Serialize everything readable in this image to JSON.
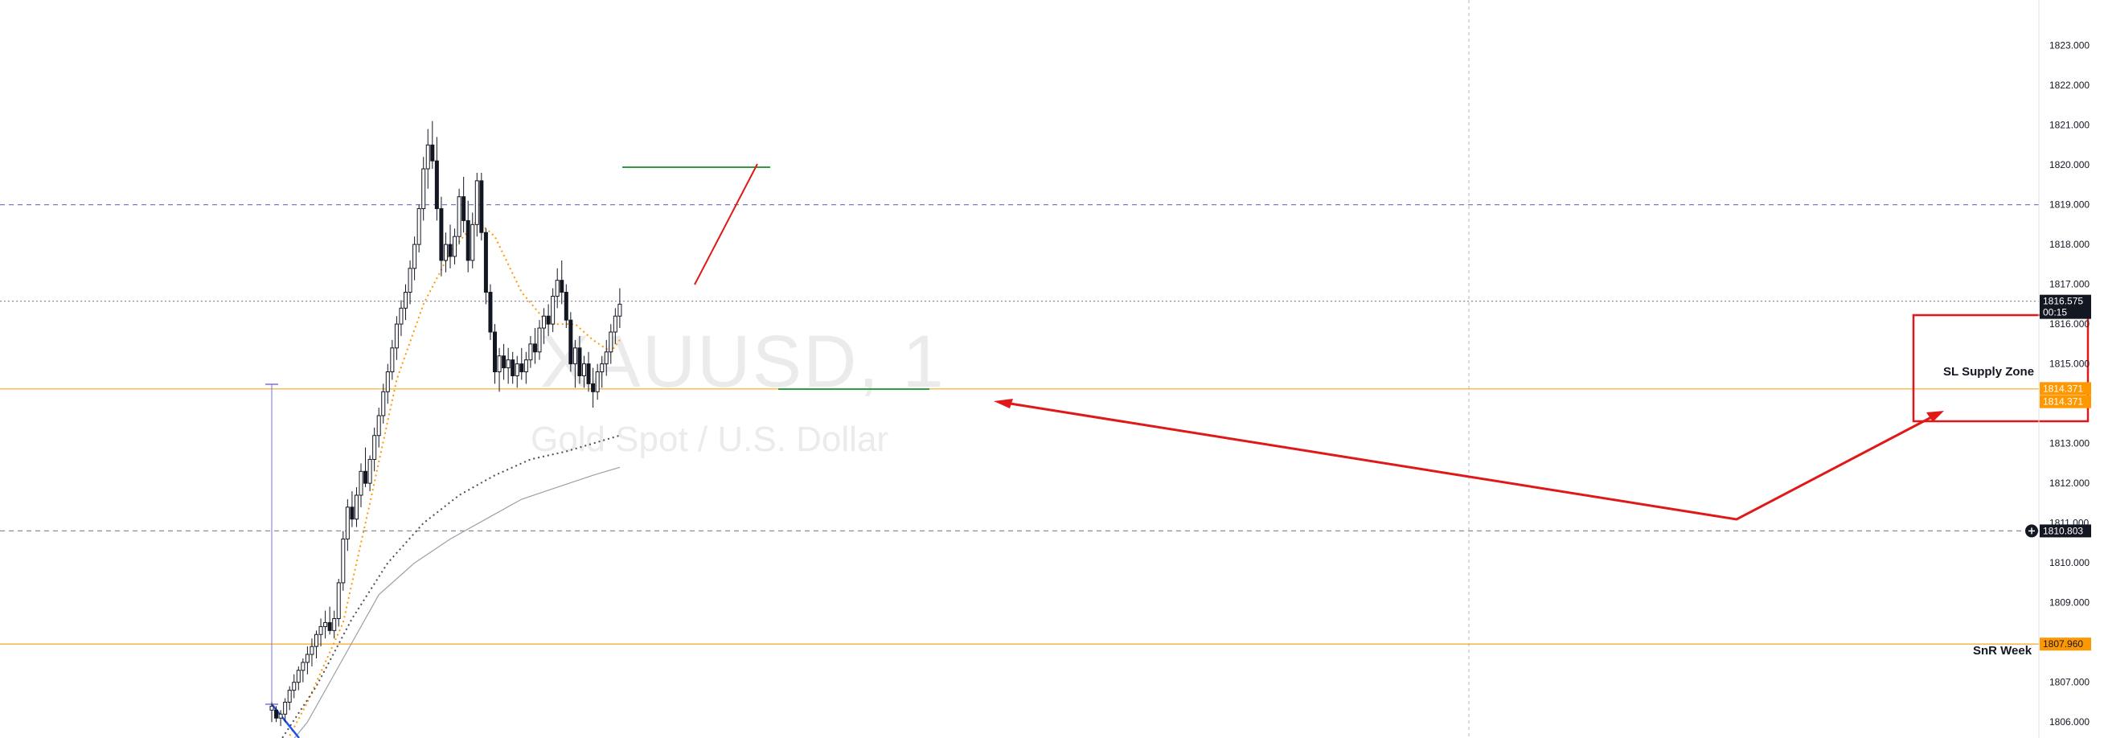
{
  "watermark": {
    "symbol": "XAUUSD, 1",
    "description": "Gold Spot / U.S. Dollar"
  },
  "chart_data": {
    "type": "candlestick",
    "symbol": "XAUUSD",
    "timeframe": "1",
    "y_axis": {
      "ylim": [
        1805.6,
        1823.9
      ],
      "ticks": [
        "1806.000",
        "1807.000",
        "1808.000",
        "1809.000",
        "1810.000",
        "1811.000",
        "1812.000",
        "1813.000",
        "1814.000",
        "1815.000",
        "1816.000",
        "1817.000",
        "1818.000",
        "1819.000",
        "1820.000",
        "1821.000",
        "1822.000",
        "1823.000"
      ]
    },
    "price_tags": [
      {
        "label": "1816.575",
        "sub": "00:15",
        "value": 1816.575,
        "bg": "#131722",
        "fg": "#ffffff"
      },
      {
        "label": "1814.371",
        "value": 1814.38,
        "bg": "#ff9800",
        "fg": "#ffffff"
      },
      {
        "label": "1814.371",
        "value": 1814.05,
        "bg": "#ff9800",
        "fg": "#ffffff"
      },
      {
        "label": "1810.803",
        "value": 1810.803,
        "bg": "#131722",
        "fg": "#ffffff",
        "icon": "plus-circle-icon"
      },
      {
        "label": "1807.960",
        "value": 1807.96,
        "bg": "#ff9800",
        "fg": "#131722"
      }
    ],
    "horizontal_lines": [
      {
        "name": "SL Supply Zone",
        "value": 1814.37,
        "color": "#f5a623",
        "style": "solid"
      },
      {
        "name": "SnR Week",
        "value": 1807.96,
        "color": "#f5a623",
        "style": "solid"
      },
      {
        "value": 1819.0,
        "color": "#7a7fb5",
        "style": "dashed"
      },
      {
        "value": 1816.575,
        "color": "#8a8e99",
        "style": "dotted"
      },
      {
        "value": 1810.803,
        "color": "#8a8e99",
        "style": "dashed"
      }
    ],
    "annotations": {
      "supply_zone_label": "SL Supply Zone",
      "snr_label": "SnR Week"
    },
    "candles": [
      [
        1806.3,
        1806.5,
        1806.0,
        1806.4
      ],
      [
        1806.3,
        1806.4,
        1806.0,
        1806.1
      ],
      [
        1806.1,
        1806.3,
        1805.9,
        1806.2
      ],
      [
        1806.2,
        1806.6,
        1806.0,
        1806.5
      ],
      [
        1806.5,
        1806.9,
        1806.3,
        1806.8
      ],
      [
        1806.8,
        1807.2,
        1806.6,
        1807.0
      ],
      [
        1807.0,
        1807.4,
        1806.8,
        1807.3
      ],
      [
        1807.3,
        1807.6,
        1807.0,
        1807.5
      ],
      [
        1807.5,
        1807.9,
        1807.2,
        1807.7
      ],
      [
        1807.7,
        1808.1,
        1807.4,
        1807.9
      ],
      [
        1807.9,
        1808.3,
        1807.6,
        1808.2
      ],
      [
        1808.2,
        1808.6,
        1807.9,
        1808.4
      ],
      [
        1808.4,
        1808.8,
        1808.1,
        1808.5
      ],
      [
        1808.5,
        1808.9,
        1808.2,
        1808.3
      ],
      [
        1808.3,
        1808.8,
        1808.1,
        1808.6
      ],
      [
        1808.6,
        1809.6,
        1808.4,
        1809.5
      ],
      [
        1809.5,
        1810.8,
        1809.3,
        1810.6
      ],
      [
        1810.6,
        1811.6,
        1810.3,
        1811.4
      ],
      [
        1811.4,
        1811.8,
        1810.9,
        1811.1
      ],
      [
        1811.1,
        1811.9,
        1810.9,
        1811.7
      ],
      [
        1811.7,
        1812.5,
        1811.4,
        1812.3
      ],
      [
        1812.3,
        1812.9,
        1811.9,
        1812.0
      ],
      [
        1812.0,
        1812.7,
        1811.8,
        1812.6
      ],
      [
        1812.6,
        1813.4,
        1812.3,
        1813.2
      ],
      [
        1813.2,
        1813.9,
        1812.9,
        1813.7
      ],
      [
        1813.7,
        1814.5,
        1813.5,
        1814.3
      ],
      [
        1814.3,
        1815.0,
        1814.0,
        1814.8
      ],
      [
        1814.8,
        1815.6,
        1814.6,
        1815.4
      ],
      [
        1815.4,
        1816.2,
        1815.1,
        1816.0
      ],
      [
        1816.0,
        1816.6,
        1815.7,
        1816.4
      ],
      [
        1816.4,
        1817.0,
        1816.1,
        1816.8
      ],
      [
        1816.8,
        1817.6,
        1816.5,
        1817.4
      ],
      [
        1817.4,
        1818.2,
        1817.1,
        1818.0
      ],
      [
        1818.0,
        1819.0,
        1817.8,
        1818.9
      ],
      [
        1818.9,
        1820.2,
        1818.6,
        1819.9
      ],
      [
        1819.9,
        1820.9,
        1819.4,
        1820.5
      ],
      [
        1820.5,
        1821.1,
        1819.9,
        1820.1
      ],
      [
        1820.1,
        1820.7,
        1818.6,
        1818.9
      ],
      [
        1818.9,
        1819.2,
        1817.2,
        1817.6
      ],
      [
        1817.6,
        1818.3,
        1817.3,
        1818.0
      ],
      [
        1818.0,
        1818.5,
        1817.4,
        1817.7
      ],
      [
        1817.7,
        1818.4,
        1817.5,
        1818.2
      ],
      [
        1818.2,
        1819.4,
        1818.0,
        1819.2
      ],
      [
        1819.2,
        1819.7,
        1818.3,
        1818.6
      ],
      [
        1818.6,
        1819.1,
        1817.3,
        1817.6
      ],
      [
        1817.6,
        1818.8,
        1817.4,
        1818.5
      ],
      [
        1818.5,
        1819.8,
        1818.2,
        1819.6
      ],
      [
        1819.6,
        1819.8,
        1818.1,
        1818.3
      ],
      [
        1818.3,
        1818.4,
        1816.5,
        1816.8
      ],
      [
        1816.8,
        1817.0,
        1815.6,
        1815.8
      ],
      [
        1815.8,
        1816.0,
        1814.5,
        1814.8
      ],
      [
        1814.8,
        1815.4,
        1814.3,
        1815.2
      ],
      [
        1815.2,
        1815.5,
        1814.6,
        1814.9
      ],
      [
        1814.9,
        1815.4,
        1814.5,
        1815.1
      ],
      [
        1815.1,
        1815.3,
        1814.5,
        1814.7
      ],
      [
        1814.7,
        1815.2,
        1814.4,
        1815.0
      ],
      [
        1815.0,
        1815.4,
        1814.6,
        1814.8
      ],
      [
        1814.8,
        1815.3,
        1814.5,
        1815.1
      ],
      [
        1815.1,
        1815.7,
        1814.9,
        1815.5
      ],
      [
        1815.5,
        1815.9,
        1815.0,
        1815.3
      ],
      [
        1815.3,
        1816.1,
        1815.1,
        1815.9
      ],
      [
        1815.9,
        1816.4,
        1815.5,
        1816.2
      ],
      [
        1816.2,
        1816.5,
        1815.7,
        1816.0
      ],
      [
        1816.0,
        1816.9,
        1815.8,
        1816.7
      ],
      [
        1816.7,
        1817.4,
        1816.4,
        1817.1
      ],
      [
        1817.1,
        1817.6,
        1816.5,
        1816.8
      ],
      [
        1816.8,
        1817.0,
        1815.9,
        1816.1
      ],
      [
        1816.1,
        1816.3,
        1814.8,
        1815.0
      ],
      [
        1815.0,
        1815.6,
        1814.4,
        1815.4
      ],
      [
        1815.4,
        1815.7,
        1814.5,
        1814.7
      ],
      [
        1814.7,
        1815.2,
        1814.4,
        1815.0
      ],
      [
        1815.0,
        1815.3,
        1814.3,
        1814.5
      ],
      [
        1814.5,
        1814.9,
        1813.9,
        1814.3
      ],
      [
        1814.3,
        1815.0,
        1814.1,
        1814.8
      ],
      [
        1814.8,
        1815.2,
        1814.4,
        1815.0
      ],
      [
        1815.0,
        1815.6,
        1814.7,
        1815.3
      ],
      [
        1815.3,
        1816.0,
        1815.0,
        1815.8
      ],
      [
        1815.8,
        1816.4,
        1815.5,
        1816.2
      ],
      [
        1816.2,
        1816.9,
        1815.9,
        1816.5
      ]
    ],
    "indicators": [
      {
        "type": "moving-average",
        "style": "dotted",
        "color": "#ff9800",
        "points": [
          [
            0,
            1804.8
          ],
          [
            8,
            1806.5
          ],
          [
            16,
            1808.5
          ],
          [
            22,
            1811.5
          ],
          [
            28,
            1814.6
          ],
          [
            34,
            1816.5
          ],
          [
            40,
            1817.8
          ],
          [
            46,
            1818.6
          ],
          [
            50,
            1818.2
          ],
          [
            56,
            1816.8
          ],
          [
            62,
            1816.0
          ],
          [
            68,
            1816.0
          ],
          [
            72,
            1815.6
          ],
          [
            76,
            1815.3
          ],
          [
            78,
            1815.6
          ]
        ]
      },
      {
        "type": "moving-average",
        "style": "dotted",
        "color": "#4a4e5a",
        "points": [
          [
            0,
            1805.2
          ],
          [
            10,
            1806.9
          ],
          [
            18,
            1808.6
          ],
          [
            26,
            1810.0
          ],
          [
            34,
            1811.0
          ],
          [
            42,
            1811.7
          ],
          [
            50,
            1812.2
          ],
          [
            58,
            1812.6
          ],
          [
            66,
            1812.8
          ],
          [
            72,
            1813.0
          ],
          [
            78,
            1813.2
          ]
        ]
      },
      {
        "type": "moving-average",
        "style": "solid",
        "color": "#9aa0a8",
        "points": [
          [
            0,
            1804.9
          ],
          [
            8,
            1806.0
          ],
          [
            16,
            1807.6
          ],
          [
            24,
            1809.2
          ],
          [
            32,
            1810.0
          ],
          [
            40,
            1810.6
          ],
          [
            48,
            1811.1
          ],
          [
            56,
            1811.6
          ],
          [
            64,
            1811.9
          ],
          [
            72,
            1812.2
          ],
          [
            78,
            1812.4
          ]
        ]
      }
    ]
  }
}
